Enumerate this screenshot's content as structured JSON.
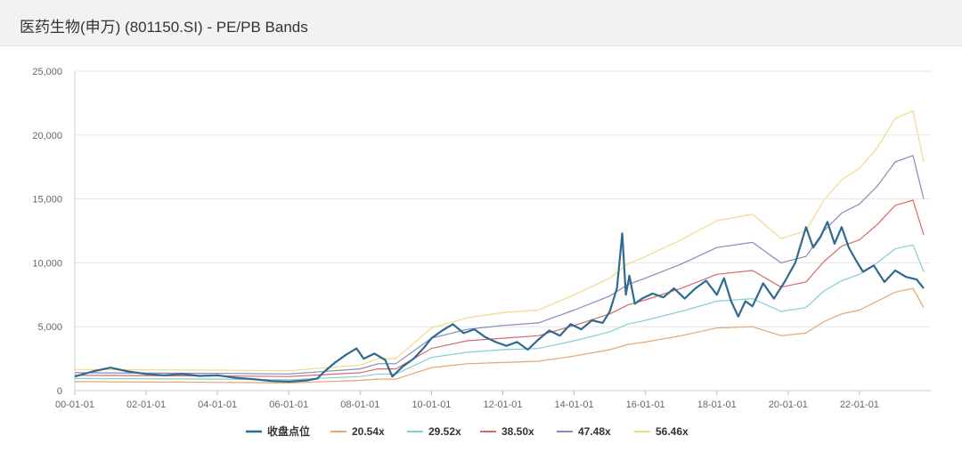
{
  "header": {
    "title": "医药生物(申万) (801150.SI) - PE/PB Bands"
  },
  "chart_data": {
    "type": "line",
    "title": "医药生物(申万) (801150.SI) - PE/PB Bands",
    "xlabel": "",
    "ylabel": "",
    "x_ticks": [
      "00-01-01",
      "02-01-01",
      "04-01-01",
      "06-01-01",
      "08-01-01",
      "10-01-01",
      "12-01-01",
      "14-01-01",
      "16-01-01",
      "18-01-01",
      "20-01-01",
      "22-01-01"
    ],
    "y_ticks": [
      "0",
      "5,000",
      "10,000",
      "15,000",
      "20,000",
      "25,000"
    ],
    "xlim": [
      2000.0,
      2024.0
    ],
    "ylim": [
      0,
      25000
    ],
    "grid": "horizontal",
    "legend_position": "bottom",
    "series": [
      {
        "name": "收盘点位",
        "color": "#2e6b8f",
        "width": 2.2,
        "x": [
          2000.0,
          2000.5,
          2001.0,
          2001.5,
          2002.0,
          2002.5,
          2003.0,
          2003.5,
          2004.0,
          2004.5,
          2005.0,
          2005.5,
          2006.0,
          2006.5,
          2006.8,
          2007.0,
          2007.3,
          2007.6,
          2007.9,
          2008.1,
          2008.4,
          2008.7,
          2008.9,
          2009.2,
          2009.5,
          2009.8,
          2010.0,
          2010.3,
          2010.6,
          2010.9,
          2011.2,
          2011.5,
          2011.8,
          2012.1,
          2012.4,
          2012.7,
          2013.0,
          2013.3,
          2013.6,
          2013.9,
          2014.2,
          2014.5,
          2014.8,
          2015.0,
          2015.2,
          2015.35,
          2015.45,
          2015.55,
          2015.7,
          2015.9,
          2016.2,
          2016.5,
          2016.8,
          2017.1,
          2017.4,
          2017.7,
          2018.0,
          2018.2,
          2018.4,
          2018.6,
          2018.8,
          2019.0,
          2019.3,
          2019.6,
          2019.9,
          2020.2,
          2020.5,
          2020.7,
          2020.9,
          2021.1,
          2021.3,
          2021.5,
          2021.7,
          2021.9,
          2022.1,
          2022.4,
          2022.7,
          2023.0,
          2023.3,
          2023.6,
          2023.8
        ],
        "y": [
          1100,
          1500,
          1800,
          1500,
          1300,
          1200,
          1300,
          1150,
          1200,
          1000,
          900,
          750,
          700,
          800,
          950,
          1500,
          2200,
          2800,
          3300,
          2500,
          2900,
          2400,
          1100,
          1900,
          2500,
          3400,
          4100,
          4700,
          5200,
          4500,
          4800,
          4200,
          3800,
          3500,
          3800,
          3200,
          4000,
          4700,
          4300,
          5200,
          4800,
          5500,
          5300,
          6200,
          8000,
          12300,
          7500,
          9000,
          6800,
          7200,
          7600,
          7300,
          8000,
          7200,
          8000,
          8600,
          7500,
          8800,
          7000,
          5800,
          7000,
          6600,
          8400,
          7200,
          8500,
          10000,
          12800,
          11200,
          12000,
          13200,
          11500,
          12800,
          11200,
          10200,
          9300,
          9800,
          8500,
          9400,
          8900,
          8700,
          8000
        ]
      },
      {
        "name": "20.54x",
        "color": "#e8a46a",
        "width": 1.2,
        "x": [
          2000.0,
          2004.0,
          2006.0,
          2008.0,
          2008.5,
          2009.0,
          2010.0,
          2011.0,
          2012.0,
          2013.0,
          2014.0,
          2015.0,
          2015.5,
          2016.0,
          2017.0,
          2018.0,
          2019.0,
          2019.8,
          2020.5,
          2021.0,
          2021.5,
          2022.0,
          2022.5,
          2023.0,
          2023.5,
          2023.8
        ],
        "y": [
          700,
          650,
          600,
          800,
          900,
          900,
          1800,
          2100,
          2200,
          2300,
          2700,
          3200,
          3600,
          3800,
          4300,
          4900,
          5000,
          4300,
          4500,
          5400,
          6000,
          6300,
          7000,
          7700,
          8000,
          6500
        ]
      },
      {
        "name": "29.52x",
        "color": "#7fd0d6",
        "width": 1.2,
        "x": [
          2000.0,
          2004.0,
          2006.0,
          2008.0,
          2008.5,
          2009.0,
          2010.0,
          2011.0,
          2012.0,
          2013.0,
          2014.0,
          2015.0,
          2015.5,
          2016.0,
          2017.0,
          2018.0,
          2019.0,
          2019.8,
          2020.5,
          2021.0,
          2021.5,
          2022.0,
          2022.5,
          2023.0,
          2023.5,
          2023.8
        ],
        "y": [
          950,
          900,
          850,
          1100,
          1300,
          1300,
          2600,
          3000,
          3200,
          3300,
          3900,
          4600,
          5200,
          5500,
          6200,
          7000,
          7200,
          6200,
          6500,
          7800,
          8600,
          9100,
          10000,
          11100,
          11400,
          9300
        ]
      },
      {
        "name": "38.50x",
        "color": "#d46a6a",
        "width": 1.2,
        "x": [
          2000.0,
          2004.0,
          2006.0,
          2008.0,
          2008.5,
          2009.0,
          2010.0,
          2011.0,
          2012.0,
          2013.0,
          2014.0,
          2015.0,
          2015.5,
          2016.0,
          2017.0,
          2018.0,
          2019.0,
          2019.8,
          2020.5,
          2021.0,
          2021.5,
          2022.0,
          2022.5,
          2023.0,
          2023.5,
          2023.8
        ],
        "y": [
          1200,
          1150,
          1100,
          1400,
          1700,
          1700,
          3300,
          3900,
          4100,
          4300,
          5100,
          6000,
          6700,
          7100,
          8000,
          9100,
          9400,
          8100,
          8500,
          10100,
          11300,
          11800,
          13000,
          14500,
          14900,
          12200
        ]
      },
      {
        "name": "47.48x",
        "color": "#8a88b8",
        "width": 1.2,
        "x": [
          2000.0,
          2004.0,
          2006.0,
          2008.0,
          2008.5,
          2009.0,
          2010.0,
          2011.0,
          2012.0,
          2013.0,
          2014.0,
          2015.0,
          2015.5,
          2016.0,
          2017.0,
          2018.0,
          2019.0,
          2019.8,
          2020.5,
          2021.0,
          2021.5,
          2022.0,
          2022.5,
          2023.0,
          2023.5,
          2023.8
        ],
        "y": [
          1400,
          1350,
          1300,
          1700,
          2100,
          2100,
          4100,
          4800,
          5100,
          5300,
          6300,
          7400,
          8300,
          8800,
          9900,
          11200,
          11600,
          10000,
          10500,
          12500,
          13900,
          14600,
          16000,
          17900,
          18400,
          15000
        ]
      },
      {
        "name": "56.46x",
        "color": "#f2d98a",
        "width": 1.2,
        "x": [
          2000.0,
          2004.0,
          2006.0,
          2008.0,
          2008.5,
          2009.0,
          2010.0,
          2011.0,
          2012.0,
          2013.0,
          2014.0,
          2015.0,
          2015.5,
          2016.0,
          2017.0,
          2018.0,
          2019.0,
          2019.8,
          2020.5,
          2021.0,
          2021.5,
          2022.0,
          2022.5,
          2023.0,
          2023.5,
          2023.8
        ],
        "y": [
          1650,
          1600,
          1550,
          2000,
          2500,
          2500,
          4900,
          5700,
          6100,
          6300,
          7500,
          8800,
          9900,
          10500,
          11800,
          13300,
          13800,
          11900,
          12500,
          14900,
          16500,
          17400,
          19000,
          21300,
          21900,
          17900
        ]
      }
    ]
  }
}
